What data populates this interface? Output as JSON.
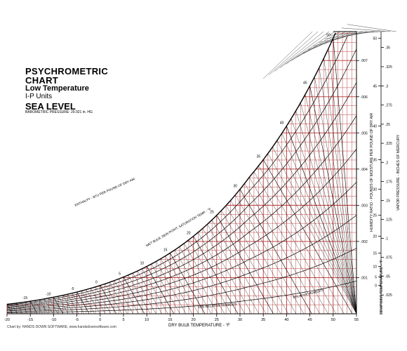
{
  "chart_data": {
    "type": "psychrometric",
    "title": "PSYCHROMETRIC",
    "title_line2": "CHART",
    "subtitle": "Low Temperature",
    "units": "I-P Units",
    "elevation": "SEA LEVEL",
    "pressure_note": "BAROMETRIC PRESSURE: 29.921 in. HG",
    "xlabel": "DRY BULB TEMPERATURE - °F",
    "right_axis_label": "HUMIDITY RATIO - POUNDS OF MOISTURE PER POUND OF DRY AIR",
    "vapor_axis_label": "VAPOR PRESSURE - INCHES OF MERCURY",
    "dewpoint_axis_label": "DEWPOINT TEMPERATURE - °F",
    "enthalpy_label": "ENTHALPY - BTU PER POUND OF DRY AIR",
    "wetbulb_label": "WET BULB, DEW POINT, SATURATION TEMP. - °F",
    "rh_label": "RELATIVE HUMIDITY",
    "rh_label_bottom": "10% RELATIVE HUMIDITY",
    "credit": "Chart by: HANDS DOWN SOFTWARE, www.handsdownsoftware.com",
    "x_ticks": [
      -20,
      -15,
      -10,
      -5,
      0,
      5,
      10,
      15,
      20,
      25,
      30,
      35,
      40,
      45,
      50,
      55
    ],
    "xlim": [
      -20,
      55
    ],
    "humidity_ratio_ticks": [
      ".001",
      ".002",
      ".003",
      ".004",
      ".005",
      ".006",
      ".007"
    ],
    "ylim": [
      0,
      0.0078
    ],
    "vapor_pressure_ticks": [
      ".025",
      ".05",
      ".075",
      ".1",
      ".125",
      ".15",
      ".175",
      ".2",
      ".225",
      ".25",
      ".275",
      ".3",
      ".325",
      ".35"
    ],
    "dewpoint_ticks": [
      "50",
      "45",
      "40",
      "35",
      "30",
      "25",
      "20",
      "15",
      "10",
      "5",
      "0"
    ],
    "relative_humidity_curves": [
      10,
      20,
      30,
      40,
      50,
      60,
      70,
      80,
      90,
      100
    ],
    "pressure_inHg": 29.921,
    "colors": {
      "grid": "#b83232",
      "lines": "#000000"
    }
  }
}
